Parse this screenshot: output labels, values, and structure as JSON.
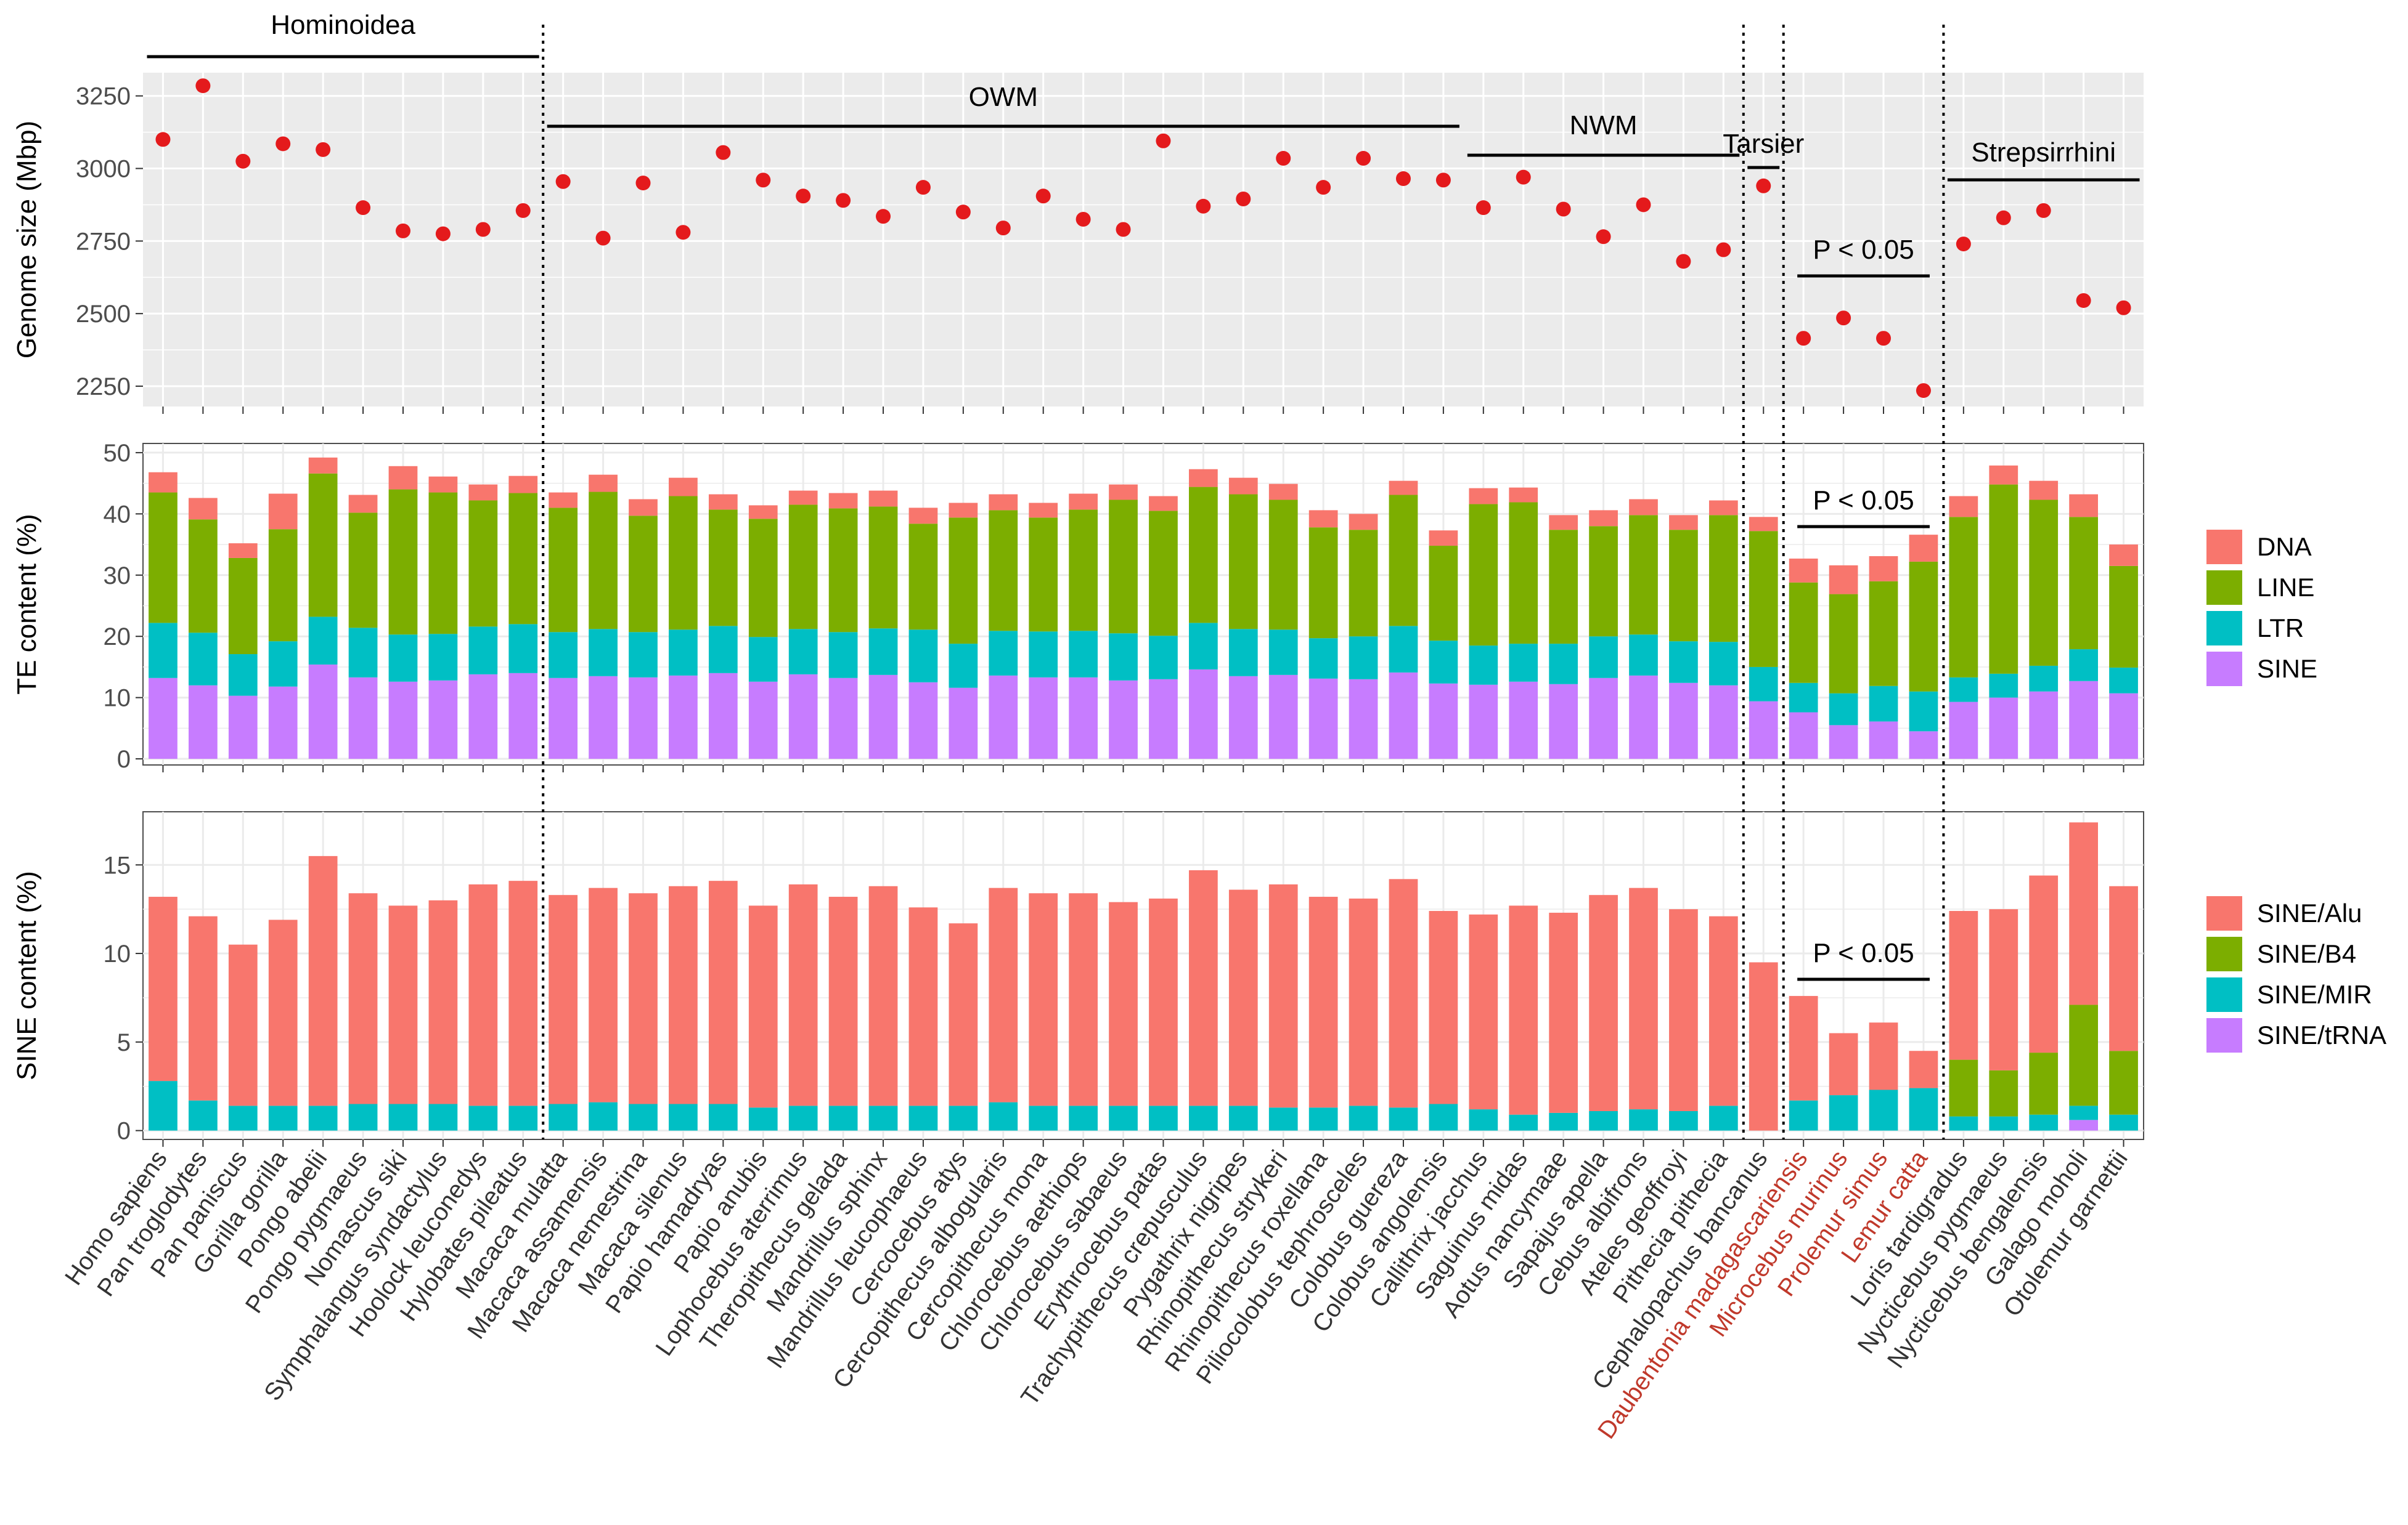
{
  "chart_data": {
    "type": "bar",
    "species": [
      "Homo sapiens",
      "Pan troglodytes",
      "Pan paniscus",
      "Gorilla gorilla",
      "Pongo abelii",
      "Pongo pygmaeus",
      "Nomascus siki",
      "Symphalangus syndactylus",
      "Hoolock leuconedys",
      "Hylobates pileatus",
      "Macaca mulatta",
      "Macaca assamensis",
      "Macaca nemestrina",
      "Macaca silenus",
      "Papio hamadryas",
      "Papio anubis",
      "Lophocebus aterrimus",
      "Theropithecus gelada",
      "Mandrillus sphinx",
      "Mandrillus leucophaeus",
      "Cercocebus atys",
      "Cercopithecus albogularis",
      "Cercopithecus mona",
      "Chlorocebus aethiops",
      "Chlorocebus sabaeus",
      "Erythrocebus patas",
      "Trachypithecus crepusculus",
      "Pygathrix nigripes",
      "Rhinopithecus strykeri",
      "Rhinopithecus roxellana",
      "Piliocolobus tephrosceles",
      "Colobus guereza",
      "Colobus angolensis",
      "Callithrix jacchus",
      "Saguinus midas",
      "Aotus nancymaae",
      "Sapajus apella",
      "Cebus albifrons",
      "Ateles geoffroyi",
      "Pithecia pithecia",
      "Cephalopachus bancanus",
      "Daubentonia madagascariensis",
      "Microcebus murinus",
      "Prolemur simus",
      "Lemur catta",
      "Loris tardigradus",
      "Nycticebus pygmaeus",
      "Nycticebus bengalensis",
      "Galago moholi",
      "Otolemur garnettii"
    ],
    "highlighted_species": [
      "Daubentonia madagascariensis",
      "Microcebus murinus",
      "Prolemur simus",
      "Lemur catta"
    ],
    "groups": [
      {
        "name": "Hominoidea",
        "first": 0,
        "last": 9
      },
      {
        "name": "OWM",
        "first": 10,
        "last": 32
      },
      {
        "name": "NWM",
        "first": 33,
        "last": 39
      },
      {
        "name": "Tarsier",
        "first": 40,
        "last": 40
      },
      {
        "name": "Strepsirrhini",
        "first": 45,
        "last": 49
      }
    ],
    "panels": [
      {
        "id": "genome",
        "type": "scatter",
        "ylabel": "Genome size (Mbp)",
        "ylim": [
          2180,
          3330
        ],
        "yticks": [
          2250,
          2500,
          2750,
          3000,
          3250
        ],
        "point_color": "#e41a1c",
        "values": [
          3100,
          3285,
          3025,
          3085,
          3065,
          2865,
          2785,
          2775,
          2790,
          2855,
          2955,
          2760,
          2950,
          2780,
          3055,
          2960,
          2905,
          2890,
          2835,
          2935,
          2850,
          2795,
          2905,
          2825,
          2790,
          3095,
          2870,
          2895,
          3035,
          2935,
          3035,
          2965,
          2960,
          2865,
          2970,
          2860,
          2765,
          2875,
          2680,
          2720,
          2940,
          2415,
          2485,
          2415,
          2235,
          2740,
          2830,
          2855,
          2545,
          2520
        ],
        "pvalue": {
          "label": "P < 0.05",
          "first": 41,
          "last": 44
        }
      },
      {
        "id": "te",
        "type": "stacked-bar",
        "ylabel": "TE content (%)",
        "ylim": [
          -1,
          51.5
        ],
        "yticks": [
          0,
          10,
          20,
          30,
          40,
          50
        ],
        "series": [
          {
            "name": "SINE",
            "color": "#c77cff",
            "values": [
              13.2,
              12.0,
              10.3,
              11.8,
              15.4,
              13.3,
              12.6,
              12.8,
              13.8,
              14.0,
              13.2,
              13.5,
              13.3,
              13.6,
              14.0,
              12.6,
              13.8,
              13.2,
              13.7,
              12.5,
              11.6,
              13.6,
              13.3,
              13.3,
              12.8,
              13.0,
              14.6,
              13.5,
              13.7,
              13.1,
              13.0,
              14.1,
              12.3,
              12.1,
              12.6,
              12.2,
              13.2,
              13.6,
              12.4,
              12.0,
              9.4,
              7.6,
              5.5,
              6.1,
              4.5,
              9.3,
              10.0,
              11.0,
              12.7,
              10.7
            ]
          },
          {
            "name": "LTR",
            "color": "#00bfc4",
            "values": [
              9.0,
              8.6,
              6.8,
              7.4,
              7.8,
              8.1,
              7.7,
              7.6,
              7.8,
              8.0,
              7.5,
              7.7,
              7.4,
              7.5,
              7.7,
              7.3,
              7.4,
              7.5,
              7.6,
              8.6,
              7.2,
              7.3,
              7.5,
              7.6,
              7.7,
              7.1,
              7.6,
              7.7,
              7.4,
              6.6,
              7.0,
              7.6,
              7.0,
              6.4,
              6.2,
              6.6,
              6.8,
              6.7,
              6.8,
              7.1,
              5.6,
              4.8,
              5.2,
              5.8,
              6.5,
              4.0,
              3.9,
              4.2,
              5.2,
              4.2
            ]
          },
          {
            "name": "LINE",
            "color": "#7cae00",
            "values": [
              21.3,
              18.5,
              15.7,
              18.3,
              23.4,
              18.8,
              23.7,
              23.1,
              20.6,
              21.4,
              20.3,
              22.4,
              19.0,
              21.8,
              19.0,
              19.3,
              20.3,
              20.2,
              19.9,
              17.3,
              20.6,
              19.7,
              18.6,
              19.8,
              21.8,
              20.4,
              22.2,
              22.0,
              21.2,
              18.1,
              17.4,
              21.4,
              15.5,
              23.1,
              23.1,
              18.6,
              18.0,
              19.5,
              18.2,
              20.7,
              22.2,
              16.4,
              16.2,
              17.1,
              21.2,
              26.2,
              30.9,
              27.1,
              21.6,
              16.6
            ]
          },
          {
            "name": "DNA",
            "color": "#f8766d",
            "values": [
              3.3,
              3.5,
              2.4,
              5.8,
              2.6,
              2.9,
              3.8,
              2.6,
              2.6,
              2.8,
              2.5,
              2.8,
              2.7,
              3.0,
              2.5,
              2.2,
              2.3,
              2.5,
              2.6,
              2.6,
              2.4,
              2.6,
              2.4,
              2.6,
              2.5,
              2.4,
              2.9,
              2.7,
              2.6,
              2.8,
              2.6,
              2.3,
              2.5,
              2.6,
              2.4,
              2.4,
              2.6,
              2.6,
              2.4,
              2.4,
              2.3,
              3.9,
              4.7,
              4.1,
              4.4,
              3.4,
              3.1,
              3.1,
              3.7,
              3.5
            ]
          }
        ],
        "pvalue": {
          "label": "P < 0.05",
          "first": 41,
          "last": 44
        }
      },
      {
        "id": "sine",
        "type": "stacked-bar",
        "ylabel": "SINE content (%)",
        "ylim": [
          -0.5,
          18
        ],
        "yticks": [
          0,
          5,
          10,
          15
        ],
        "series": [
          {
            "name": "SINE/tRNA",
            "color": "#c77cff",
            "values": [
              0,
              0,
              0,
              0,
              0,
              0,
              0,
              0,
              0,
              0,
              0,
              0,
              0,
              0,
              0,
              0,
              0,
              0,
              0,
              0,
              0,
              0,
              0,
              0,
              0,
              0,
              0,
              0,
              0,
              0,
              0,
              0,
              0,
              0,
              0,
              0,
              0,
              0,
              0,
              0,
              0,
              0,
              0,
              0,
              0,
              0,
              0,
              0,
              0.6,
              0
            ]
          },
          {
            "name": "SINE/MIR",
            "color": "#00bfc4",
            "values": [
              2.8,
              1.7,
              1.4,
              1.4,
              1.4,
              1.5,
              1.5,
              1.5,
              1.4,
              1.4,
              1.5,
              1.6,
              1.5,
              1.5,
              1.5,
              1.3,
              1.4,
              1.4,
              1.4,
              1.4,
              1.4,
              1.6,
              1.4,
              1.4,
              1.4,
              1.4,
              1.4,
              1.4,
              1.3,
              1.3,
              1.4,
              1.3,
              1.5,
              1.2,
              0.9,
              1.0,
              1.1,
              1.2,
              1.1,
              1.4,
              0,
              1.7,
              2.0,
              2.3,
              2.4,
              0.8,
              0.8,
              0.9,
              0.8,
              0.9
            ]
          },
          {
            "name": "SINE/B4",
            "color": "#7cae00",
            "values": [
              0,
              0,
              0,
              0,
              0,
              0,
              0,
              0,
              0,
              0,
              0,
              0,
              0,
              0,
              0,
              0,
              0,
              0,
              0,
              0,
              0,
              0,
              0,
              0,
              0,
              0,
              0,
              0,
              0,
              0,
              0,
              0,
              0,
              0,
              0,
              0,
              0,
              0,
              0,
              0,
              0,
              0,
              0,
              0,
              0,
              3.2,
              2.6,
              3.5,
              5.7,
              3.6
            ]
          },
          {
            "name": "SINE/Alu",
            "color": "#f8766d",
            "values": [
              10.4,
              10.4,
              9.1,
              10.5,
              14.1,
              11.9,
              11.2,
              11.5,
              12.5,
              12.7,
              11.8,
              12.1,
              11.9,
              12.3,
              12.6,
              11.4,
              12.5,
              11.8,
              12.4,
              11.2,
              10.3,
              12.1,
              12.0,
              12.0,
              11.5,
              11.7,
              13.3,
              12.2,
              12.6,
              11.9,
              11.7,
              12.9,
              10.9,
              11.0,
              11.8,
              11.3,
              12.2,
              12.5,
              11.4,
              10.7,
              9.5,
              5.9,
              3.5,
              3.8,
              2.1,
              8.4,
              9.1,
              10.0,
              10.3,
              9.3
            ]
          }
        ],
        "pvalue": {
          "label": "P < 0.05",
          "first": 41,
          "last": 44
        }
      }
    ],
    "legends": [
      {
        "panel": "te",
        "items": [
          {
            "name": "DNA",
            "color": "#f8766d"
          },
          {
            "name": "LINE",
            "color": "#7cae00"
          },
          {
            "name": "LTR",
            "color": "#00bfc4"
          },
          {
            "name": "SINE",
            "color": "#c77cff"
          }
        ]
      },
      {
        "panel": "sine",
        "items": [
          {
            "name": "SINE/Alu",
            "color": "#f8766d"
          },
          {
            "name": "SINE/B4",
            "color": "#7cae00"
          },
          {
            "name": "SINE/MIR",
            "color": "#00bfc4"
          },
          {
            "name": "SINE/tRNA",
            "color": "#c77cff"
          }
        ]
      }
    ],
    "dividers_after_index": [
      9,
      39,
      40,
      44
    ]
  }
}
